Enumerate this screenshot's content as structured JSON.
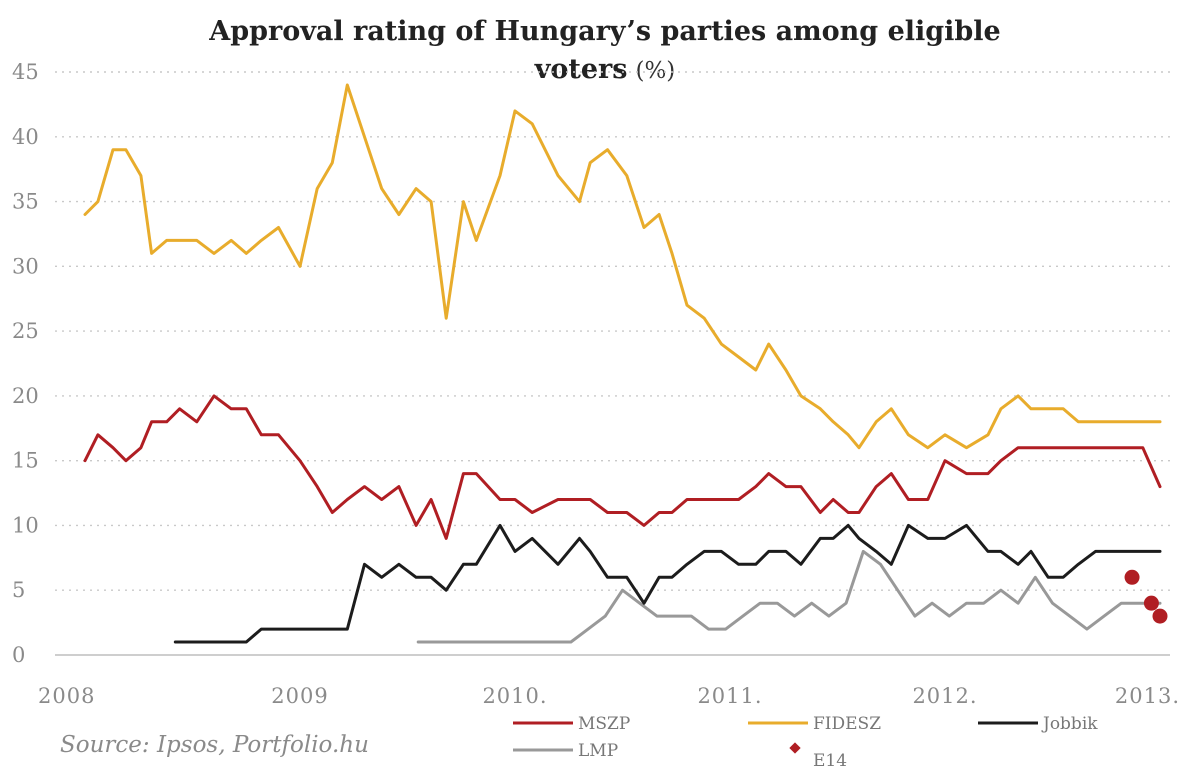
{
  "chart_data": {
    "type": "line",
    "title": "Approval rating of Hungary’s parties among eligible",
    "title_line2": "voters",
    "title_unit": "(%)",
    "ylim": [
      0,
      45
    ],
    "yticks": [
      "0",
      "5",
      "10",
      "15",
      "20",
      "25",
      "30",
      "35",
      "40",
      "45"
    ],
    "xlim": [
      2008,
      2013
    ],
    "xticks": [
      {
        "value": 2008,
        "label": "2008"
      },
      {
        "value": 2009,
        "label": "2009"
      },
      {
        "value": 2010,
        "label": "2010."
      },
      {
        "value": 2011,
        "label": "2011."
      },
      {
        "value": 2012,
        "label": "2012."
      },
      {
        "value": 2013,
        "label": "2013."
      }
    ],
    "grid": true,
    "legend_position": "bottom",
    "source": "Source: Ipsos, Portfolio.hu",
    "series": [
      {
        "name": "FIDESZ",
        "color": "#e8ac2c",
        "x": [
          2008.0,
          2008.06,
          2008.13,
          2008.19,
          2008.26,
          2008.31,
          2008.38,
          2008.44,
          2008.52,
          2008.6,
          2008.68,
          2008.75,
          2008.82,
          2008.9,
          2009.0,
          2009.08,
          2009.15,
          2009.22,
          2009.3,
          2009.38,
          2009.46,
          2009.54,
          2009.61,
          2009.68,
          2009.76,
          2009.82,
          2009.93,
          2010.0,
          2010.08,
          2010.2,
          2010.3,
          2010.35,
          2010.43,
          2010.52,
          2010.6,
          2010.67,
          2010.73,
          2010.8,
          2010.88,
          2010.96,
          2011.04,
          2011.12,
          2011.18,
          2011.26,
          2011.33,
          2011.42,
          2011.48,
          2011.55,
          2011.6,
          2011.68,
          2011.75,
          2011.83,
          2011.92,
          2012.0,
          2012.1,
          2012.2,
          2012.26,
          2012.34,
          2012.4,
          2012.48,
          2012.55,
          2012.62,
          2012.7,
          2012.78,
          2012.85,
          2012.92,
          2013.0
        ],
        "values": [
          34,
          35,
          39,
          39,
          37,
          31,
          32,
          32,
          32,
          31,
          32,
          31,
          32,
          33,
          30,
          36,
          38,
          44,
          40,
          36,
          34,
          36,
          35,
          26,
          35,
          32,
          37,
          42,
          41,
          37,
          35,
          38,
          39,
          37,
          33,
          34,
          31,
          27,
          26,
          24,
          23,
          22,
          24,
          22,
          20,
          19,
          18,
          17,
          16,
          18,
          19,
          17,
          16,
          17,
          16,
          17,
          19,
          20,
          19,
          19,
          19,
          18,
          18,
          18,
          18,
          18,
          18
        ]
      },
      {
        "name": "MSZP",
        "color": "#b01e23",
        "x": [
          2008.0,
          2008.06,
          2008.13,
          2008.19,
          2008.26,
          2008.31,
          2008.38,
          2008.44,
          2008.52,
          2008.6,
          2008.68,
          2008.75,
          2008.82,
          2008.9,
          2009.0,
          2009.08,
          2009.15,
          2009.22,
          2009.3,
          2009.38,
          2009.46,
          2009.54,
          2009.61,
          2009.68,
          2009.76,
          2009.82,
          2009.93,
          2010.0,
          2010.08,
          2010.2,
          2010.3,
          2010.35,
          2010.43,
          2010.52,
          2010.6,
          2010.67,
          2010.73,
          2010.8,
          2010.88,
          2010.96,
          2011.04,
          2011.12,
          2011.18,
          2011.26,
          2011.33,
          2011.42,
          2011.48,
          2011.55,
          2011.6,
          2011.68,
          2011.75,
          2011.83,
          2011.92,
          2012.0,
          2012.1,
          2012.2,
          2012.26,
          2012.34,
          2012.4,
          2012.48,
          2012.55,
          2012.62,
          2012.7,
          2012.78,
          2012.85,
          2012.92,
          2013.0
        ],
        "values": [
          15,
          17,
          16,
          15,
          16,
          18,
          18,
          19,
          18,
          20,
          19,
          19,
          17,
          17,
          15,
          13,
          11,
          12,
          13,
          12,
          13,
          10,
          12,
          9,
          14,
          14,
          12,
          12,
          11,
          12,
          12,
          12,
          11,
          11,
          10,
          11,
          11,
          12,
          12,
          12,
          12,
          13,
          14,
          13,
          13,
          11,
          12,
          11,
          11,
          13,
          14,
          12,
          12,
          15,
          14,
          14,
          15,
          16,
          16,
          16,
          16,
          16,
          16,
          16,
          16,
          16,
          13
        ]
      },
      {
        "name": "Jobbik",
        "color": "#1c1c1c",
        "x": [
          2008.42,
          2008.52,
          2008.6,
          2008.68,
          2008.75,
          2008.82,
          2008.9,
          2009.0,
          2009.08,
          2009.15,
          2009.22,
          2009.3,
          2009.38,
          2009.46,
          2009.54,
          2009.61,
          2009.68,
          2009.76,
          2009.82,
          2009.93,
          2010.0,
          2010.08,
          2010.2,
          2010.3,
          2010.35,
          2010.43,
          2010.52,
          2010.6,
          2010.67,
          2010.73,
          2010.8,
          2010.88,
          2010.96,
          2011.04,
          2011.12,
          2011.18,
          2011.26,
          2011.33,
          2011.42,
          2011.48,
          2011.55,
          2011.6,
          2011.68,
          2011.75,
          2011.83,
          2011.92,
          2012.0,
          2012.1,
          2012.2,
          2012.26,
          2012.34,
          2012.4,
          2012.48,
          2012.55,
          2012.62,
          2012.7,
          2012.78,
          2012.85,
          2012.92,
          2013.0
        ],
        "values": [
          1,
          1,
          1,
          1,
          1,
          2,
          2,
          2,
          2,
          2,
          2,
          7,
          6,
          7,
          6,
          6,
          5,
          7,
          7,
          10,
          8,
          9,
          7,
          9,
          8,
          6,
          6,
          4,
          6,
          6,
          7,
          8,
          8,
          7,
          7,
          8,
          8,
          7,
          9,
          9,
          10,
          9,
          8,
          7,
          10,
          9,
          9,
          10,
          8,
          8,
          7,
          8,
          6,
          6,
          7,
          8,
          8,
          8,
          8,
          8
        ]
      },
      {
        "name": "LMP",
        "color": "#999999",
        "x": [
          2009.55,
          2009.7,
          2009.85,
          2010.0,
          2010.1,
          2010.18,
          2010.26,
          2010.34,
          2010.42,
          2010.5,
          2010.58,
          2010.66,
          2010.74,
          2010.82,
          2010.9,
          2010.98,
          2011.06,
          2011.14,
          2011.22,
          2011.3,
          2011.38,
          2011.46,
          2011.54,
          2011.62,
          2011.7,
          2011.78,
          2011.86,
          2011.94,
          2012.02,
          2012.1,
          2012.18,
          2012.26,
          2012.34,
          2012.42,
          2012.5,
          2012.58,
          2012.66,
          2012.74,
          2012.82,
          2012.9,
          2013.0
        ],
        "values": [
          1,
          1,
          1,
          1,
          1,
          1,
          1,
          2,
          3,
          5,
          4,
          3,
          3,
          3,
          2,
          2,
          3,
          4,
          4,
          3,
          4,
          3,
          4,
          8,
          7,
          5,
          3,
          4,
          3,
          4,
          4,
          5,
          4,
          6,
          4,
          3,
          2,
          3,
          4,
          4,
          4
        ]
      },
      {
        "name": "E14",
        "type": "scatter",
        "color": "#b01e23",
        "x": [
          2012.87,
          2012.96,
          2013.0
        ],
        "values": [
          6,
          4,
          3
        ]
      }
    ]
  }
}
